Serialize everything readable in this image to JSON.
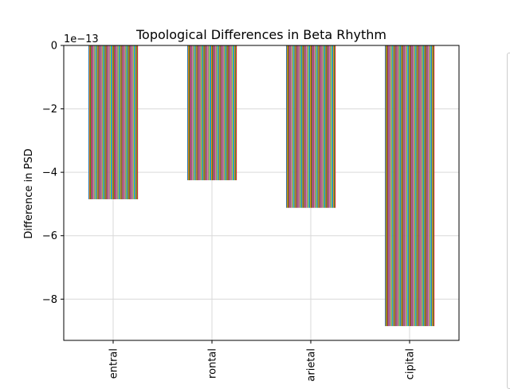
{
  "chart_data": {
    "type": "bar",
    "title": "Topological Differences in Beta Rhythm",
    "xlabel": "",
    "ylabel": "Difference in PSD",
    "offset_text": "1e−13",
    "categories": [
      "Central",
      "Frontal",
      "Parietal",
      "Occipital"
    ],
    "visible_tick_labels": [
      "entral",
      "rontal",
      "arietal",
      "cipital"
    ],
    "values_e13": [
      -4.85,
      -4.25,
      -5.12,
      -8.85
    ],
    "ylim_e13": [
      -9.3,
      0
    ],
    "yticks": [
      0,
      -2,
      -4,
      -6,
      -8
    ],
    "ytick_labels": [
      "0",
      "−2",
      "−4",
      "−6",
      "−8"
    ],
    "grid": true,
    "legend": "right (clipped)",
    "series_count": 64,
    "series_colors": [
      "#1f77b4",
      "#ff7f0e",
      "#2ca02c",
      "#d62728",
      "#9467bd",
      "#8c564b",
      "#e377c2",
      "#7f7f7f",
      "#bcbd22",
      "#17becf"
    ]
  }
}
